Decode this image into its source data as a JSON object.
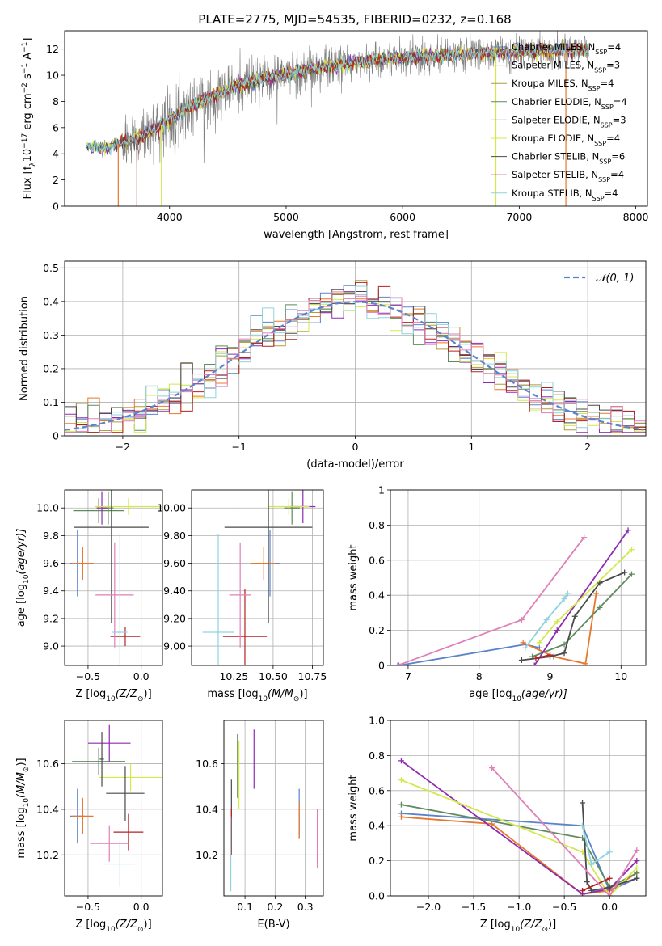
{
  "figure": {
    "title": "PLATE=2775, MJD=54535, FIBERID=0232, z=0.168"
  },
  "series_styles": [
    {
      "name": "Chabrier MILES, N",
      "sub": "SSP",
      "tail": "=4",
      "color": "#5b83cc"
    },
    {
      "name": "Salpeter MILES, N",
      "sub": "SSP",
      "tail": "=3",
      "color": "#e8772b"
    },
    {
      "name": "Kroupa MILES, N",
      "sub": "SSP",
      "tail": "=4",
      "color": "#b09a3c"
    },
    {
      "name": "Chabrier ELODIE, N",
      "sub": "SSP",
      "tail": "=4",
      "color": "#5f8a5f"
    },
    {
      "name": "Salpeter ELODIE, N",
      "sub": "SSP",
      "tail": "=3",
      "color": "#8e2bb0"
    },
    {
      "name": "Kroupa ELODIE, N",
      "sub": "SSP",
      "tail": "=4",
      "color": "#d4e84a"
    },
    {
      "name": "Chabrier STELIB, N",
      "sub": "SSP",
      "tail": "=6",
      "color": "#4a4a4a"
    },
    {
      "name": "Salpeter STELIB, N",
      "sub": "SSP",
      "tail": "=4",
      "color": "#b22222"
    },
    {
      "name": "Kroupa STELIB, N",
      "sub": "SSP",
      "tail": "=4",
      "color": "#8fd3dc"
    }
  ],
  "extra_colors": {
    "pink": "#e07fb8",
    "observed": "#808080"
  },
  "chart_data": [
    {
      "id": "spectrum",
      "type": "line",
      "xlabel": "wavelength [Angstrom, rest frame]",
      "ylabel": "Flux [f",
      "xlim": [
        3100,
        8100
      ],
      "ylim": [
        0,
        13.4
      ],
      "xticks": [
        4000,
        5000,
        6000,
        7000,
        8000
      ],
      "yticks": [
        0,
        2,
        4,
        6,
        8,
        10,
        12
      ],
      "legend": "right",
      "continuum": [
        [
          3290,
          4.6
        ],
        [
          3450,
          4.4
        ],
        [
          3600,
          4.9
        ],
        [
          3750,
          5.3
        ],
        [
          3900,
          6.0
        ],
        [
          4000,
          6.6
        ],
        [
          4150,
          7.5
        ],
        [
          4300,
          8.1
        ],
        [
          4500,
          8.9
        ],
        [
          4700,
          9.5
        ],
        [
          5000,
          10.1
        ],
        [
          5300,
          10.6
        ],
        [
          5600,
          11.0
        ],
        [
          6000,
          11.3
        ],
        [
          6500,
          11.6
        ],
        [
          7000,
          11.8
        ],
        [
          7500,
          11.9
        ],
        [
          7600,
          11.9
        ]
      ]
    },
    {
      "id": "residuals",
      "type": "histogram",
      "xlabel": "(data-model)/error",
      "ylabel": "Normed distribution",
      "xlim": [
        -2.5,
        2.5
      ],
      "ylim": [
        0,
        0.52
      ],
      "xticks": [
        -2,
        -1,
        0,
        1,
        2
      ],
      "yticks": [
        0.0,
        0.1,
        0.2,
        0.3,
        0.4,
        0.5
      ],
      "grid": true,
      "legend": "top-right",
      "normal_label": "𝒩(0, 1)"
    },
    {
      "id": "age_vs_Z",
      "type": "errorbar",
      "xlabel": "Z [log",
      "ylabel": "age  [log",
      "xlim": [
        -0.72,
        0.2
      ],
      "ylim": [
        8.86,
        10.13
      ],
      "xticks": [
        -0.5,
        0.0
      ],
      "yticks": [
        9.0,
        9.2,
        9.4,
        9.6,
        9.8,
        10.0
      ],
      "grid": true,
      "points": [
        {
          "x": -0.6,
          "y": 9.6,
          "xerr": 0.07,
          "yerr": 0.24,
          "c": 0
        },
        {
          "x": -0.55,
          "y": 9.6,
          "xerr": 0.1,
          "yerr": 0.12,
          "c": 1
        },
        {
          "x": -0.31,
          "y": 10.0,
          "xerr": 0.05,
          "yerr": 0.12,
          "c": 3
        },
        {
          "x": -0.4,
          "y": 9.98,
          "xerr": 0.24,
          "yerr": 0.09,
          "c": 3
        },
        {
          "x": -0.37,
          "y": 10.0,
          "xerr": 0.05,
          "yerr": 0.12,
          "c": 4
        },
        {
          "x": -0.12,
          "y": 10.01,
          "xerr": 0.32,
          "yerr": 0.06,
          "c": 5
        },
        {
          "x": -0.28,
          "y": 9.86,
          "xerr": 0.35,
          "yerr": 0.69,
          "c": 6
        },
        {
          "x": -0.15,
          "y": 9.07,
          "xerr": 0.14,
          "yerr": 0.07,
          "c": 7
        },
        {
          "x": -0.25,
          "y": 9.37,
          "xerr": 0.18,
          "yerr": 0.38,
          "c": "pink"
        },
        {
          "x": -0.2,
          "y": 9.1,
          "xerr": 0.07,
          "yerr": 0.71,
          "c": 8
        }
      ]
    },
    {
      "id": "age_vs_mass",
      "type": "errorbar",
      "xlabel": "mass [log",
      "ylabel": "",
      "xlim": [
        9.98,
        10.82
      ],
      "ylim": [
        8.86,
        10.13
      ],
      "xticks": [
        10.25,
        10.5,
        10.75
      ],
      "yticks": [
        9.0,
        9.2,
        9.4,
        9.6,
        9.8,
        10.0
      ],
      "grid": true,
      "points": [
        {
          "x": 10.48,
          "y": 9.6,
          "xerr": 0.06,
          "yerr": 0.24,
          "c": 0
        },
        {
          "x": 10.44,
          "y": 9.6,
          "xerr": 0.08,
          "yerr": 0.12,
          "c": 1
        },
        {
          "x": 10.62,
          "y": 10.0,
          "xerr": 0.05,
          "yerr": 0.12,
          "c": 3
        },
        {
          "x": 10.69,
          "y": 10.01,
          "xerr": 0.08,
          "yerr": 0.12,
          "c": 4
        },
        {
          "x": 10.6,
          "y": 10.01,
          "xerr": 0.13,
          "yerr": 0.06,
          "c": 5
        },
        {
          "x": 10.47,
          "y": 9.86,
          "xerr": 0.28,
          "yerr": 0.69,
          "c": 6
        },
        {
          "x": 10.32,
          "y": 9.07,
          "xerr": 0.14,
          "yerr": 0.34,
          "c": 7
        },
        {
          "x": 10.29,
          "y": 9.37,
          "xerr": 0.07,
          "yerr": 0.38,
          "c": "pink"
        },
        {
          "x": 10.15,
          "y": 9.1,
          "xerr": 0.1,
          "yerr": 0.71,
          "c": 8
        }
      ]
    },
    {
      "id": "mass_weight_vs_age",
      "type": "line",
      "xlabel": "age  [log",
      "ylabel": "mass weight",
      "xlim": [
        6.75,
        10.35
      ],
      "ylim": [
        0,
        1.0
      ],
      "xticks": [
        7,
        8,
        9,
        10
      ],
      "yticks": [
        0.0,
        0.2,
        0.4,
        0.6,
        0.8,
        1.0
      ],
      "grid": true,
      "series": [
        {
          "c": 0,
          "x": [
            6.87,
            8.65,
            8.85
          ],
          "y": [
            0.0,
            0.12,
            0.1
          ]
        },
        {
          "c": 1,
          "x": [
            8.62,
            9.05,
            9.5,
            9.65
          ],
          "y": [
            0.13,
            0.05,
            0.01,
            0.41
          ]
        },
        {
          "c": 3,
          "x": [
            8.75,
            9.2,
            9.7,
            10.15
          ],
          "y": [
            0.05,
            0.12,
            0.33,
            0.52
          ]
        },
        {
          "c": 4,
          "x": [
            8.78,
            9.1,
            10.1
          ],
          "y": [
            0.0,
            0.2,
            0.77
          ]
        },
        {
          "c": 5,
          "x": [
            8.85,
            9.1,
            10.15
          ],
          "y": [
            0.13,
            0.25,
            0.66
          ]
        },
        {
          "c": 6,
          "x": [
            8.6,
            9.0,
            9.2,
            9.35,
            9.7,
            10.05
          ],
          "y": [
            0.03,
            0.05,
            0.07,
            0.28,
            0.47,
            0.53
          ]
        },
        {
          "c": 7,
          "x": [
            8.8,
            9.0
          ],
          "y": [
            0.04,
            0.06
          ]
        },
        {
          "c": "pink",
          "x": [
            6.85,
            8.6,
            9.48
          ],
          "y": [
            0.0,
            0.26,
            0.73
          ]
        },
        {
          "c": 8,
          "x": [
            8.65,
            8.95,
            9.2,
            9.25
          ],
          "y": [
            0.1,
            0.26,
            0.38,
            0.41
          ]
        }
      ]
    },
    {
      "id": "mass_vs_Z",
      "type": "errorbar",
      "xlabel": "Z [log",
      "ylabel": "mass [log",
      "xlim": [
        -0.72,
        0.2
      ],
      "ylim": [
        10.02,
        10.79
      ],
      "xticks": [
        -0.5,
        0.0
      ],
      "yticks": [
        10.2,
        10.4,
        10.6
      ],
      "grid": true,
      "points": [
        {
          "x": -0.6,
          "y": 10.37,
          "xerr": 0.07,
          "yerr": 0.12,
          "c": 0
        },
        {
          "x": -0.55,
          "y": 10.37,
          "xerr": 0.1,
          "yerr": 0.08,
          "c": 1
        },
        {
          "x": -0.4,
          "y": 10.61,
          "xerr": 0.25,
          "yerr": 0.06,
          "c": 3
        },
        {
          "x": -0.3,
          "y": 10.69,
          "xerr": 0.2,
          "yerr": 0.08,
          "c": 4
        },
        {
          "x": -0.1,
          "y": 10.54,
          "xerr": 0.3,
          "yerr": 0.06,
          "c": 5
        },
        {
          "x": -0.15,
          "y": 10.47,
          "xerr": 0.18,
          "yerr": 0.12,
          "c": 6
        },
        {
          "x": -0.12,
          "y": 10.3,
          "xerr": 0.14,
          "yerr": 0.08,
          "c": 7
        },
        {
          "x": -0.3,
          "y": 10.25,
          "xerr": 0.18,
          "yerr": 0.08,
          "c": "pink"
        },
        {
          "x": -0.2,
          "y": 10.16,
          "xerr": 0.14,
          "yerr": 0.1,
          "c": 8
        },
        {
          "x": -0.37,
          "y": 10.62,
          "xerr": 0.02,
          "yerr": 0.12,
          "c": 6
        }
      ]
    },
    {
      "id": "mass_vs_ebv",
      "type": "errorbar",
      "xlabel": "E(B-V)",
      "ylabel": "",
      "xlim": [
        0.03,
        0.36
      ],
      "ylim": [
        10.02,
        10.79
      ],
      "xticks": [
        0.1,
        0.2,
        0.3
      ],
      "yticks": [
        10.2,
        10.4,
        10.6
      ],
      "grid": true,
      "points": [
        {
          "x": 0.28,
          "y": 10.38,
          "xerr": 0.0,
          "yerr": 0.11,
          "c": 0
        },
        {
          "x": 0.28,
          "y": 10.35,
          "xerr": 0.0,
          "yerr": 0.08,
          "c": 1
        },
        {
          "x": 0.075,
          "y": 10.59,
          "xerr": 0.0,
          "yerr": 0.14,
          "c": 3
        },
        {
          "x": 0.13,
          "y": 10.62,
          "xerr": 0.0,
          "yerr": 0.13,
          "c": 4
        },
        {
          "x": 0.08,
          "y": 10.55,
          "xerr": 0.0,
          "yerr": 0.15,
          "c": 5
        },
        {
          "x": 0.055,
          "y": 10.45,
          "xerr": 0.0,
          "yerr": 0.08,
          "c": 6
        },
        {
          "x": 0.055,
          "y": 10.3,
          "xerr": 0.0,
          "yerr": 0.1,
          "c": 7
        },
        {
          "x": 0.34,
          "y": 10.27,
          "xerr": 0.0,
          "yerr": 0.13,
          "c": "pink"
        },
        {
          "x": 0.053,
          "y": 10.2,
          "xerr": 0.0,
          "yerr": 0.16,
          "c": 8
        }
      ]
    },
    {
      "id": "mass_weight_vs_Z",
      "type": "line",
      "xlabel": "Z [log",
      "ylabel": "mass weight",
      "xlim": [
        -2.42,
        0.4
      ],
      "ylim": [
        0,
        1.0
      ],
      "xticks": [
        -2.0,
        -1.5,
        -1.0,
        -0.5,
        0.0
      ],
      "yticks": [
        0.0,
        0.2,
        0.4,
        0.6,
        0.8,
        1.0
      ],
      "grid": true,
      "series": [
        {
          "c": 0,
          "x": [
            -2.3,
            -0.3,
            0.0,
            0.3
          ],
          "y": [
            0.47,
            0.4,
            0.03,
            0.1
          ]
        },
        {
          "c": 1,
          "x": [
            -2.3,
            -1.3,
            -0.3,
            0.0,
            0.3
          ],
          "y": [
            0.45,
            0.41,
            0.01,
            0.03,
            0.13
          ]
        },
        {
          "c": 3,
          "x": [
            -2.3,
            -0.3,
            0.0,
            0.3
          ],
          "y": [
            0.52,
            0.33,
            0.05,
            0.13
          ]
        },
        {
          "c": 4,
          "x": [
            -2.3,
            -0.3,
            0.0,
            0.3
          ],
          "y": [
            0.77,
            0.01,
            0.04,
            0.2
          ]
        },
        {
          "c": 5,
          "x": [
            -2.3,
            -0.3,
            0.0,
            0.3
          ],
          "y": [
            0.66,
            0.25,
            0.0,
            0.16
          ]
        },
        {
          "c": 6,
          "x": [
            -0.3,
            -0.25,
            -0.2,
            0.0,
            0.3
          ],
          "y": [
            0.53,
            0.08,
            0.03,
            0.05,
            0.1
          ]
        },
        {
          "c": 7,
          "x": [
            -0.3,
            0.0
          ],
          "y": [
            0.03,
            0.1
          ]
        },
        {
          "c": "pink",
          "x": [
            -1.3,
            0.0,
            0.3
          ],
          "y": [
            0.73,
            0.0,
            0.26
          ]
        },
        {
          "c": 8,
          "x": [
            -0.3,
            -0.2,
            0.0
          ],
          "y": [
            0.4,
            0.18,
            0.25
          ]
        }
      ]
    }
  ]
}
